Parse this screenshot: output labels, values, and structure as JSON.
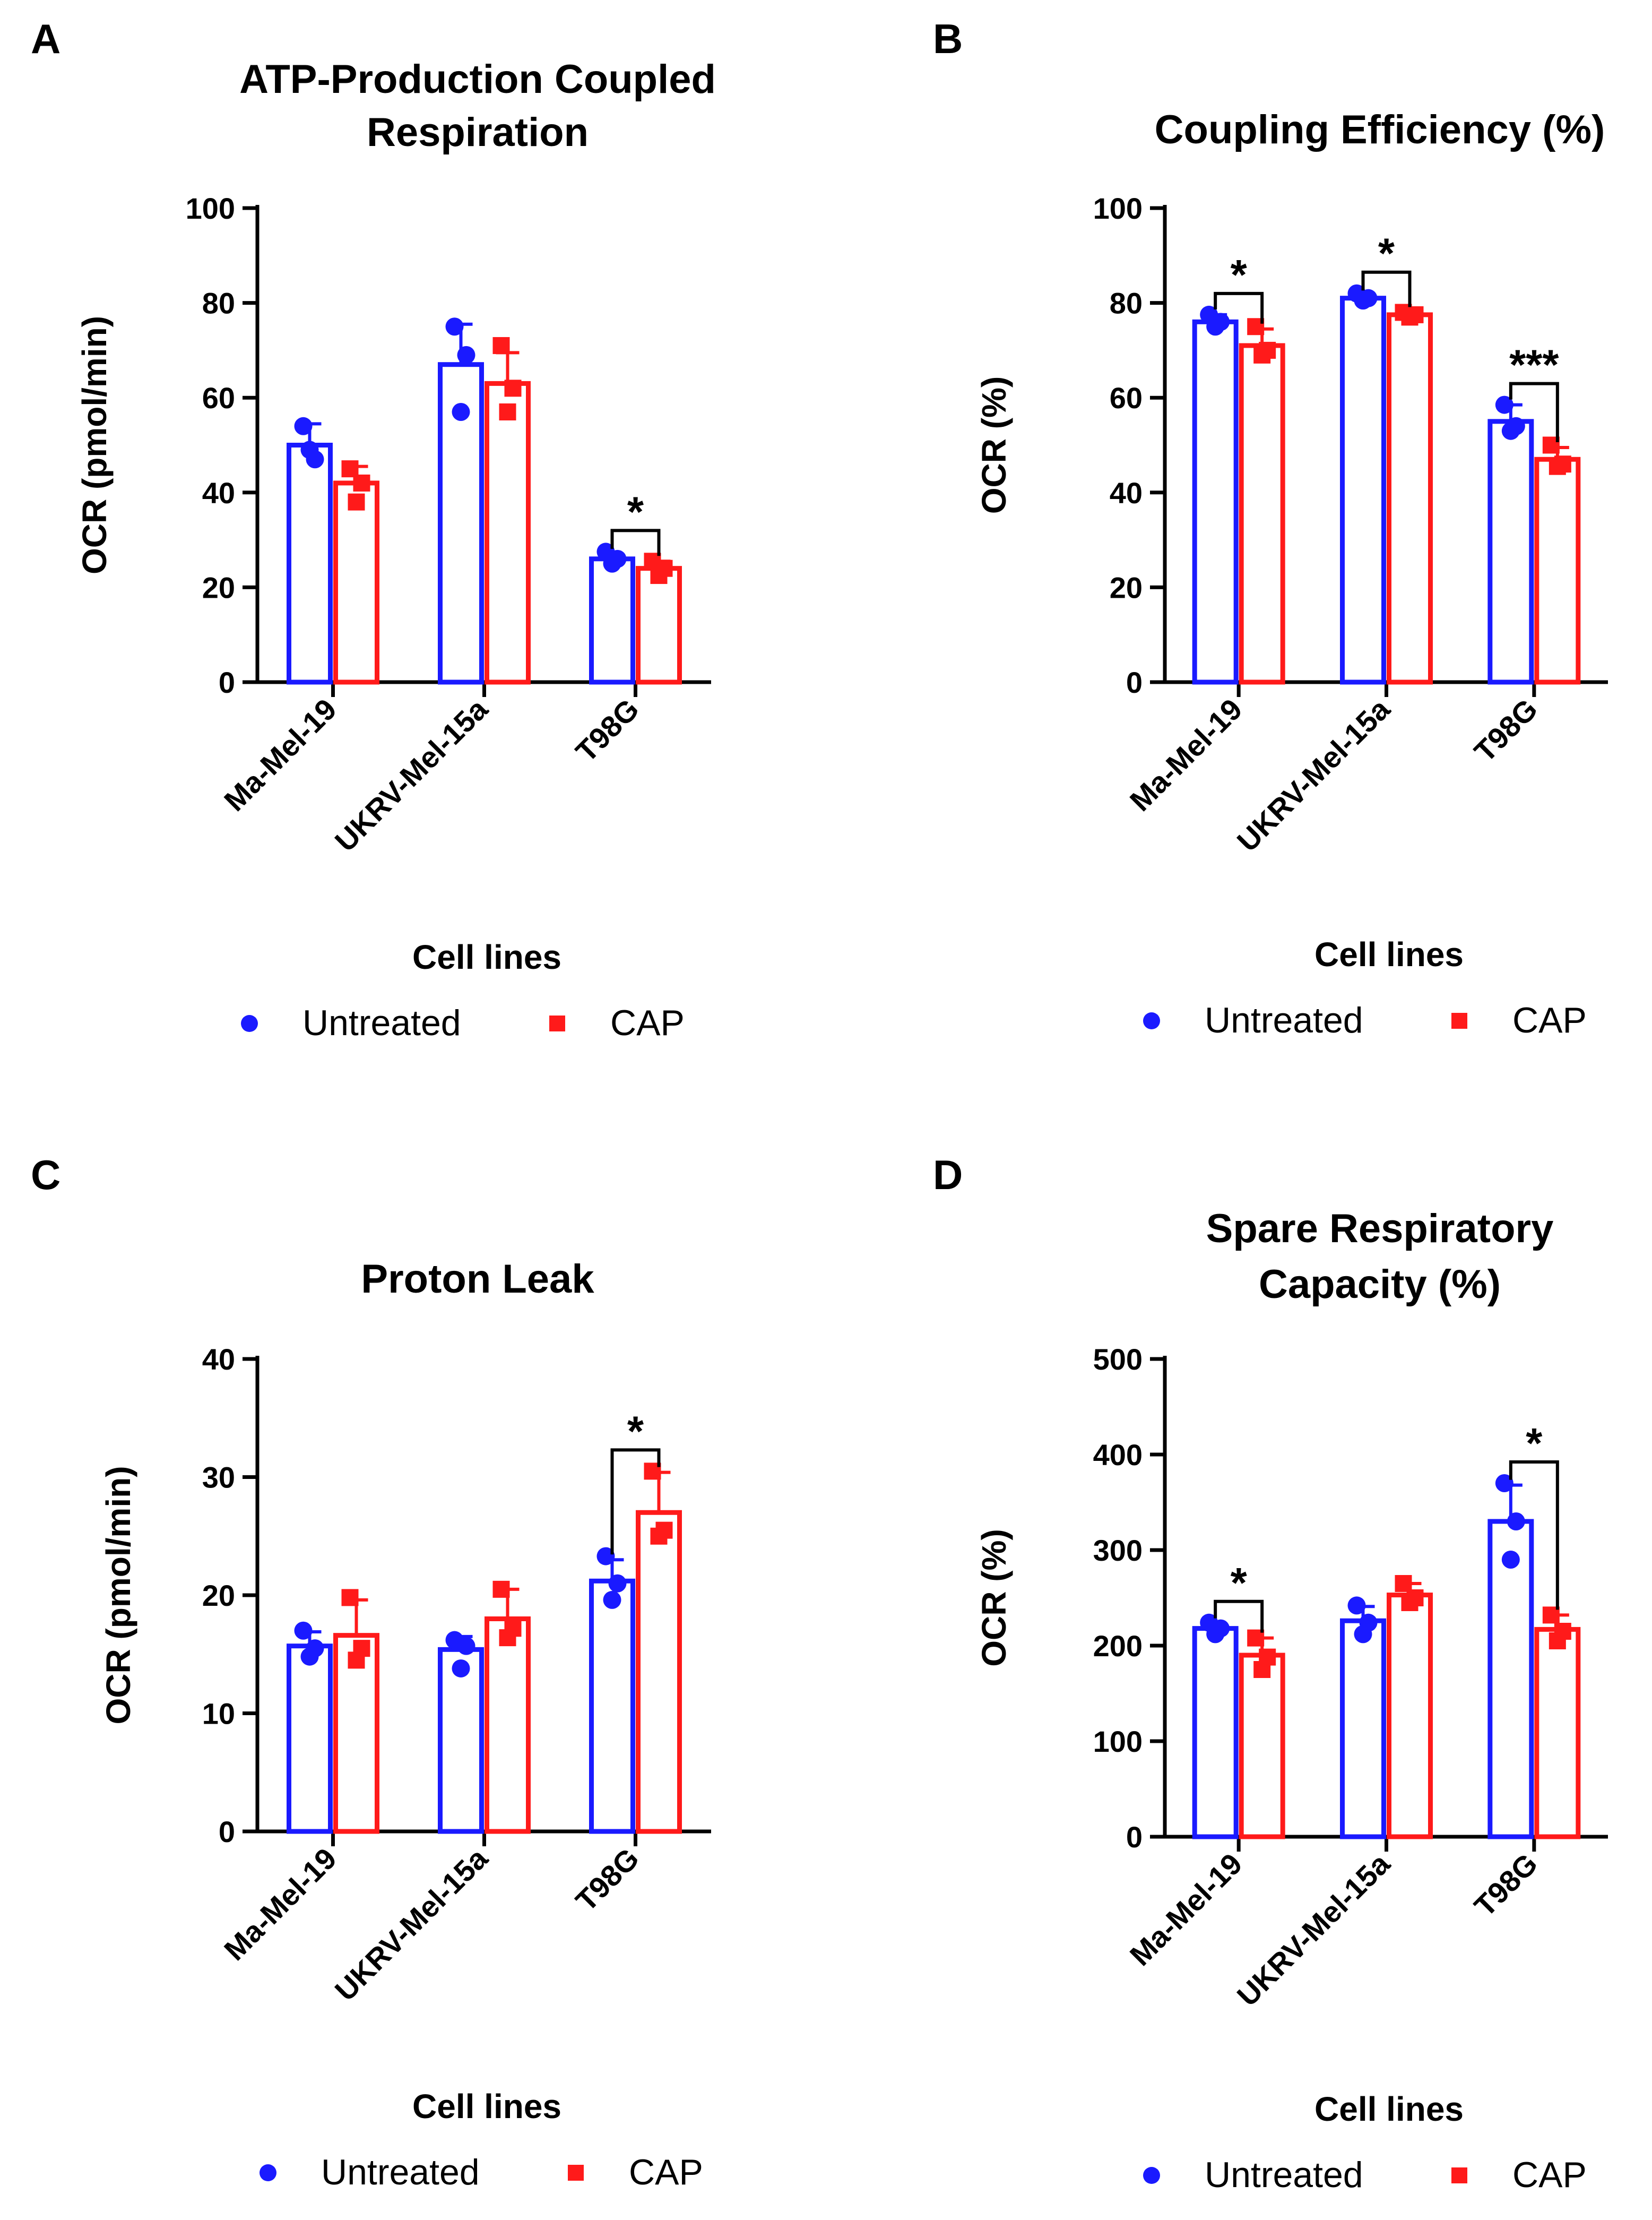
{
  "chart_data": [
    {
      "type": "bar",
      "panel": "A",
      "title": [
        "ATP-Production Coupled",
        "Respiration"
      ],
      "xlabel": "Cell lines",
      "ylabel": "OCR (pmol/min)",
      "ylim": [
        0,
        100
      ],
      "yticks": [
        "0",
        "20",
        "40",
        "60",
        "80",
        "100"
      ],
      "categories": [
        "Ma-Mel-19",
        "UKRV-Mel-15a",
        "T98G"
      ],
      "series": [
        {
          "name": "Untreated",
          "color": "#1a1aff",
          "marker": "circle",
          "values": [
            50,
            67,
            26
          ],
          "errors": [
            4.5,
            8.5,
            1
          ],
          "points": [
            [
              54,
              47,
              49
            ],
            [
              75,
              69,
              57
            ],
            [
              27.5,
              26,
              25
            ]
          ]
        },
        {
          "name": "CAP",
          "color": "#ff1a1a",
          "marker": "square",
          "values": [
            42,
            63,
            24
          ],
          "errors": [
            3.5,
            6.5,
            1.5
          ],
          "points": [
            [
              45,
              42,
              38
            ],
            [
              71,
              62,
              57
            ],
            [
              25.5,
              24,
              22.5
            ]
          ]
        }
      ],
      "significance": [
        {
          "category": 2,
          "label": "*"
        }
      ],
      "legend": [
        "Untreated",
        "CAP"
      ]
    },
    {
      "type": "bar",
      "panel": "B",
      "title": [
        "Coupling Efficiency (%)"
      ],
      "xlabel": "Cell lines",
      "ylabel": "OCR (%)",
      "ylim": [
        0,
        100
      ],
      "yticks": [
        "0",
        "20",
        "40",
        "60",
        "80",
        "100"
      ],
      "categories": [
        "Ma-Mel-19",
        "UKRV-Mel-15a",
        "T98G"
      ],
      "series": [
        {
          "name": "Untreated",
          "color": "#1a1aff",
          "marker": "circle",
          "values": [
            76,
            81,
            55
          ],
          "errors": [
            1.5,
            0.5,
            3.5
          ],
          "points": [
            [
              77.5,
              76,
              75
            ],
            [
              82,
              81,
              80.5
            ],
            [
              58.5,
              54,
              53
            ]
          ]
        },
        {
          "name": "CAP",
          "color": "#ff1a1a",
          "marker": "square",
          "values": [
            71,
            77.5,
            47
          ],
          "errors": [
            3.5,
            0.5,
            2.5
          ],
          "points": [
            [
              75,
              70,
              69
            ],
            [
              78,
              77.5,
              77
            ],
            [
              50,
              46,
              45.5
            ]
          ]
        }
      ],
      "significance": [
        {
          "category": 0,
          "label": "*"
        },
        {
          "category": 1,
          "label": "*"
        },
        {
          "category": 2,
          "label": "***"
        }
      ],
      "legend": [
        "Untreated",
        "CAP"
      ]
    },
    {
      "type": "bar",
      "panel": "C",
      "title": [
        "Proton Leak"
      ],
      "xlabel": "Cell lines",
      "ylabel": "OCR (pmol/min)",
      "ylim": [
        0,
        40
      ],
      "yticks": [
        "0",
        "10",
        "20",
        "30",
        "40"
      ],
      "categories": [
        "Ma-Mel-19",
        "UKRV-Mel-15a",
        "T98G"
      ],
      "series": [
        {
          "name": "Untreated",
          "color": "#1a1aff",
          "marker": "circle",
          "values": [
            15.7,
            15.4,
            21.2
          ],
          "errors": [
            1.2,
            1.1,
            1.8
          ],
          "points": [
            [
              17,
              15.5,
              14.8
            ],
            [
              16.2,
              15.7,
              13.8
            ],
            [
              23.3,
              21,
              19.6
            ]
          ]
        },
        {
          "name": "CAP",
          "color": "#ff1a1a",
          "marker": "square",
          "values": [
            16.6,
            18,
            27
          ],
          "errors": [
            3,
            2.5,
            3.4
          ],
          "points": [
            [
              19.8,
              15.5,
              14.5
            ],
            [
              20.5,
              17.2,
              16.4
            ],
            [
              30.5,
              25.5,
              25
            ]
          ]
        }
      ],
      "significance": [
        {
          "category": 2,
          "label": "*"
        }
      ],
      "legend": [
        "Untreated",
        "CAP"
      ]
    },
    {
      "type": "bar",
      "panel": "D",
      "title": [
        "Spare Respiratory",
        "Capacity (%)"
      ],
      "xlabel": "Cell lines",
      "ylabel": "OCR (%)",
      "ylim": [
        0,
        500
      ],
      "yticks": [
        "0",
        "100",
        "200",
        "300",
        "400",
        "500"
      ],
      "categories": [
        "Ma-Mel-19",
        "UKRV-Mel-15a",
        "T98G"
      ],
      "series": [
        {
          "name": "Untreated",
          "color": "#1a1aff",
          "marker": "circle",
          "values": [
            218,
            226,
            330
          ],
          "errors": [
            5,
            15,
            38
          ],
          "points": [
            [
              224,
              218,
              212
            ],
            [
              242,
              224,
              212
            ],
            [
              370,
              330,
              290
            ]
          ]
        },
        {
          "name": "CAP",
          "color": "#ff1a1a",
          "marker": "square",
          "values": [
            190,
            253,
            217
          ],
          "errors": [
            18,
            12,
            15
          ],
          "points": [
            [
              208,
              188,
              175
            ],
            [
              265,
              250,
              245
            ],
            [
              232,
              215,
              205
            ]
          ]
        }
      ],
      "significance": [
        {
          "category": 0,
          "label": "*"
        },
        {
          "category": 2,
          "label": "*"
        }
      ],
      "legend": [
        "Untreated",
        "CAP"
      ]
    }
  ]
}
